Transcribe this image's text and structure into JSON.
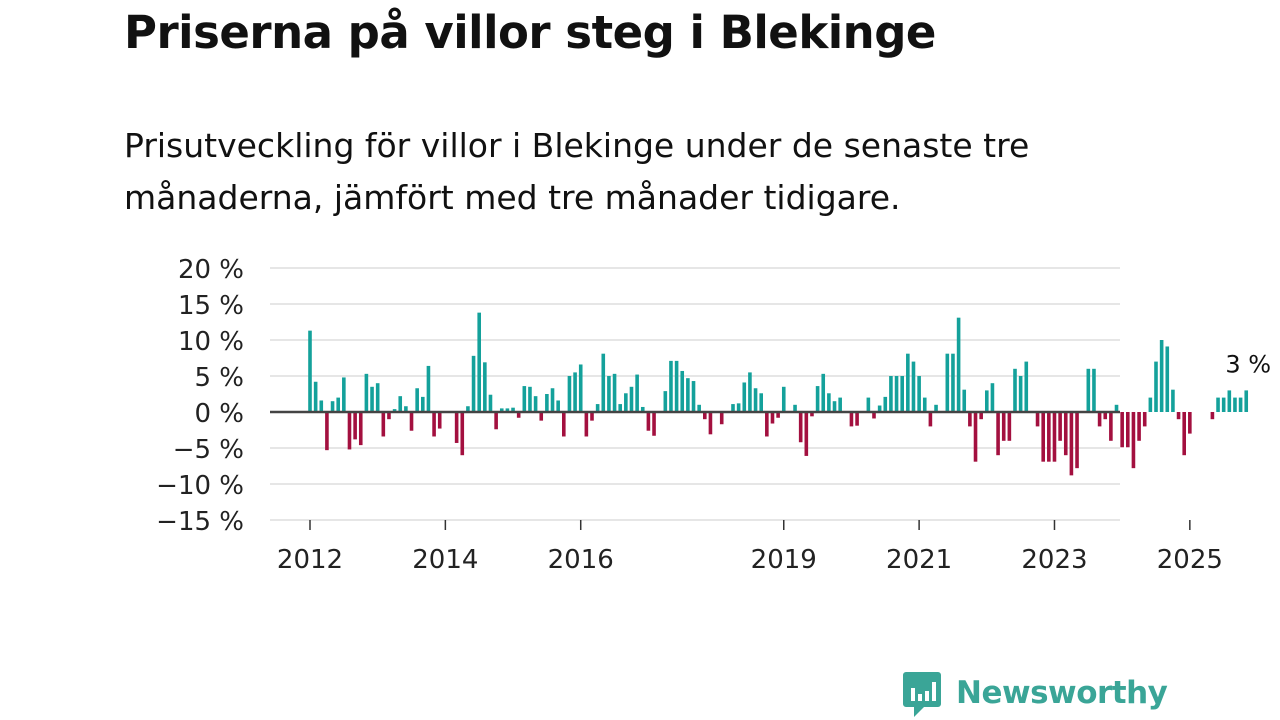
{
  "title": "Priserna på villor steg i Blekinge",
  "subtitle": "Prisutveckling för villor i Blekinge under de senaste tre månaderna, jämfört med tre månader tidigare.",
  "brand": {
    "name": "Newsworthy",
    "color": "#3aa597"
  },
  "colors": {
    "positive": "#14a19b",
    "negative": "#a3103f",
    "grid": "#dddddd",
    "zero_line": "#444444"
  },
  "chart_data": {
    "type": "bar",
    "title": "Priserna på villor steg i Blekinge",
    "xlabel": "",
    "ylabel": "",
    "ylim": [
      -15,
      20
    ],
    "y_ticks": [
      20,
      15,
      10,
      5,
      0,
      -5,
      -10,
      -15
    ],
    "y_tick_labels": [
      "20 %",
      "15 %",
      "10 %",
      "5 %",
      "0 %",
      "−5 %",
      "−10 %",
      "−15 %"
    ],
    "x_ticks": [
      {
        "label": "2012",
        "year": 2012
      },
      {
        "label": "2014",
        "year": 2014
      },
      {
        "label": "2016",
        "year": 2016
      },
      {
        "label": "2019",
        "year": 2019
      },
      {
        "label": "2021",
        "year": 2021
      },
      {
        "label": "2023",
        "year": 2023
      },
      {
        "label": "2025",
        "year": 2025
      }
    ],
    "start": {
      "year": 2012,
      "month": 1
    },
    "unit": "%",
    "values": [
      11.3,
      4.2,
      1.6,
      -5.3,
      1.5,
      2.0,
      4.8,
      -5.2,
      -3.8,
      -4.6,
      5.3,
      3.5,
      4.0,
      -3.4,
      -1.0,
      0.4,
      2.2,
      0.8,
      -2.6,
      3.3,
      2.1,
      6.4,
      -3.4,
      -2.3,
      0,
      0,
      -4.3,
      -6.0,
      0.8,
      7.8,
      13.8,
      6.9,
      2.4,
      -2.4,
      0.5,
      0.5,
      0.6,
      -0.8,
      3.6,
      3.5,
      2.2,
      -1.2,
      2.5,
      3.3,
      1.6,
      -3.4,
      5.0,
      5.5,
      6.6,
      -3.4,
      -1.2,
      1.1,
      8.1,
      5.0,
      5.3,
      1.1,
      2.6,
      3.5,
      5.2,
      0.7,
      -2.6,
      -3.3,
      0,
      2.9,
      7.1,
      7.1,
      5.7,
      4.7,
      4.3,
      1.0,
      -1.0,
      -3.1,
      0,
      -1.7,
      0,
      1.1,
      1.2,
      4.1,
      5.5,
      3.3,
      2.6,
      -3.4,
      -1.6,
      -0.8,
      3.5,
      0,
      1.0,
      -4.2,
      -6.1,
      -0.6,
      3.6,
      5.3,
      2.6,
      1.5,
      2.0,
      0,
      -2.0,
      -1.9,
      0,
      2.0,
      -0.9,
      0.9,
      2.1,
      5.0,
      5.0,
      5.0,
      8.1,
      7.0,
      5.0,
      2.0,
      -2.0,
      1.0,
      0,
      8.1,
      8.1,
      13.1,
      3.1,
      -2.0,
      -6.9,
      -1.0,
      3.0,
      4.0,
      -6.0,
      -4.0,
      -4.0,
      6.0,
      5.0,
      7.0,
      0,
      -2.0,
      -6.9,
      -6.9,
      -6.9,
      -4.0,
      -6.0,
      -8.8,
      -7.8,
      0,
      6.0,
      6.0,
      -2.0,
      -1.0,
      -4.0,
      1.0,
      -4.9,
      -4.9,
      -7.8,
      -4.0,
      -2.0,
      2.0,
      7.0,
      10.0,
      9.1,
      3.1,
      -1.0,
      -6.0,
      -3.0,
      0,
      0,
      0,
      -1.0,
      2.0,
      2.0,
      3.0,
      2.0,
      2.0,
      3.0
    ],
    "annotations": [
      {
        "text": "3 %",
        "target": "last"
      }
    ]
  }
}
